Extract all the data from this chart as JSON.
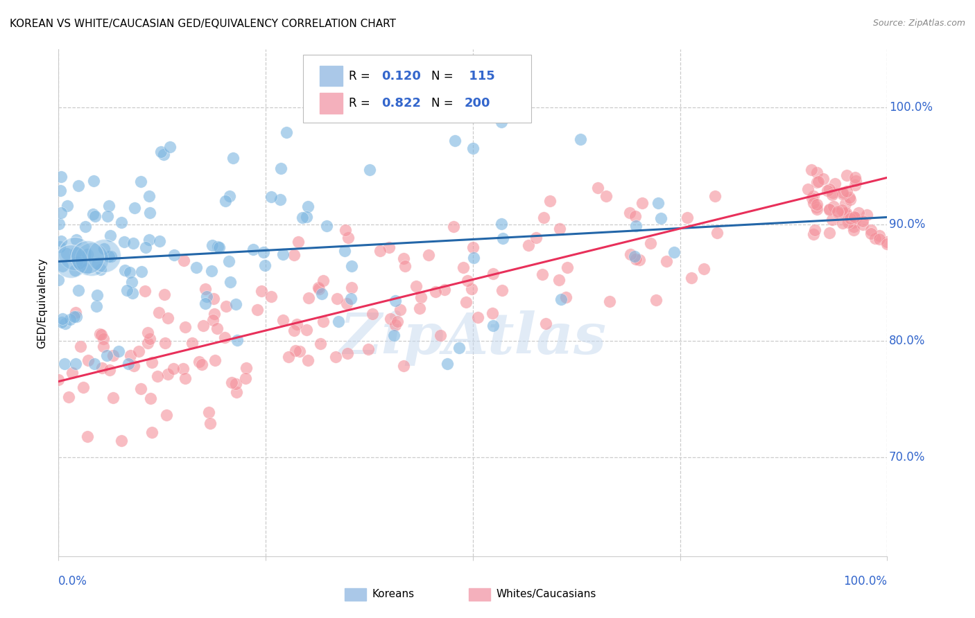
{
  "title": "KOREAN VS WHITE/CAUCASIAN GED/EQUIVALENCY CORRELATION CHART",
  "source_text": "Source: ZipAtlas.com",
  "ylabel": "GED/Equivalency",
  "ytick_values": [
    0.7,
    0.8,
    0.9,
    1.0
  ],
  "xlim": [
    0.0,
    1.0
  ],
  "ylim": [
    0.615,
    1.05
  ],
  "watermark_text": "ZipAtlas",
  "blue_scatter_color": "#7ab4e0",
  "pink_scatter_color": "#f4909a",
  "blue_line_color": "#2366a8",
  "pink_line_color": "#e8305a",
  "axis_label_color": "#3366cc",
  "grid_color": "#cccccc",
  "background_color": "#ffffff",
  "title_fontsize": 11,
  "korean_slope": 0.038,
  "korean_intercept": 0.868,
  "caucasian_slope": 0.175,
  "caucasian_intercept": 0.765,
  "legend_blue_patch": "#aac8e8",
  "legend_pink_patch": "#f4b0bc",
  "legend_R_color": "#3366cc",
  "legend_N_color": "#000000"
}
